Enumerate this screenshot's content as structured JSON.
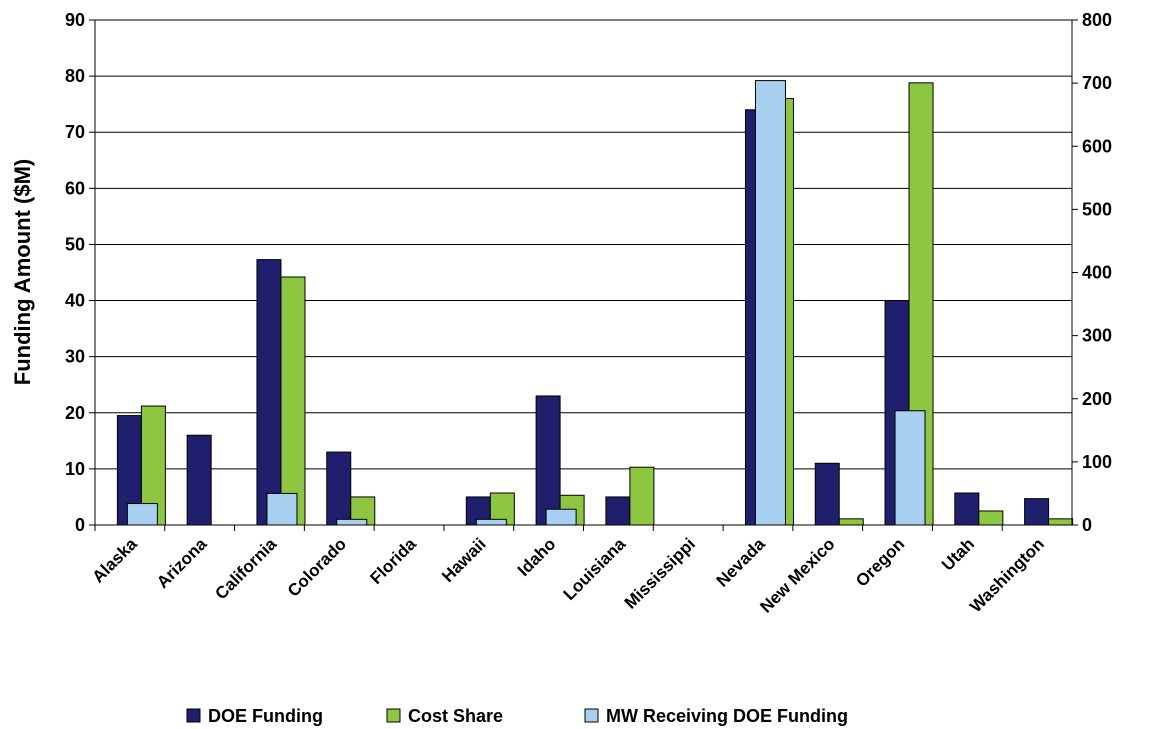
{
  "chart_data": {
    "type": "bar",
    "y_label": "Funding Amount ($M)",
    "categories": [
      "Alaska",
      "Arizona",
      "California",
      "Colorado",
      "Florida",
      "Hawaii",
      "Idaho",
      "Louisiana",
      "Mississippi",
      "Nevada",
      "New Mexico",
      "Oregon",
      "Utah",
      "Washington"
    ],
    "series": [
      {
        "name": "DOE Funding",
        "color": "#1f1f6e",
        "values": [
          19.5,
          16,
          47.3,
          13,
          0,
          5,
          23,
          5,
          0,
          74,
          11,
          40,
          5.7,
          4.7
        ]
      },
      {
        "name": "Cost Share",
        "color": "#8dc63f",
        "values": [
          21.2,
          0,
          44.2,
          5,
          0,
          5.7,
          5.3,
          10.3,
          0,
          76,
          1.1,
          78.8,
          2.5,
          1.1
        ]
      },
      {
        "name": "MW Receiving DOE Funding",
        "color": "#a6cff0",
        "axis": "y2",
        "values": [
          34,
          0,
          50,
          9,
          0,
          9,
          25,
          0,
          0,
          704,
          0,
          181,
          0,
          0
        ]
      }
    ],
    "ylim": [
      0,
      90
    ],
    "yticks": [
      0,
      10,
      20,
      30,
      40,
      50,
      60,
      70,
      80,
      90
    ],
    "y2lim": [
      0,
      800
    ],
    "y2ticks": [
      0,
      100,
      200,
      300,
      400,
      500,
      600,
      700,
      800
    ],
    "grid": true,
    "legend": "bottom"
  }
}
